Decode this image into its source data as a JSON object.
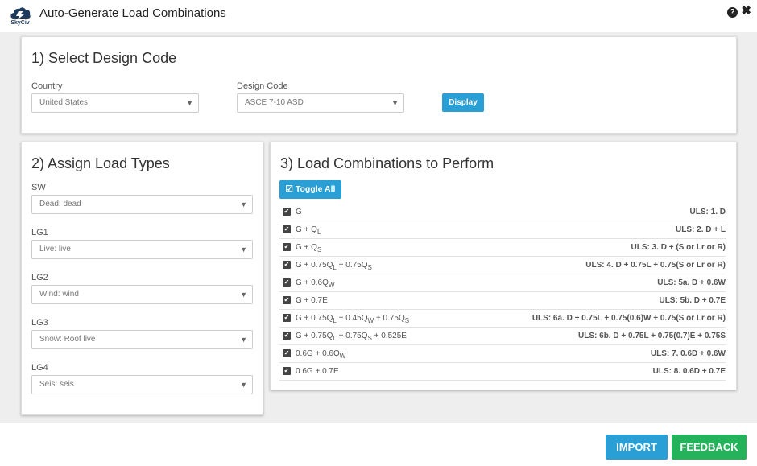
{
  "app": {
    "logo_text": "SkyCiv",
    "title": "Auto-Generate Load Combinations",
    "help_glyph": "?",
    "close_glyph": "✖"
  },
  "design_code_panel": {
    "heading": "1) Select Design Code",
    "country_label": "Country",
    "country_value": "United States",
    "design_code_label": "Design Code",
    "design_code_value": "ASCE 7-10 ASD",
    "display_button": "Display"
  },
  "load_types_panel": {
    "heading": "2) Assign Load Types",
    "items": [
      {
        "label": "SW",
        "value": "Dead: dead"
      },
      {
        "label": "LG1",
        "value": "Live: live"
      },
      {
        "label": "LG2",
        "value": "Wind: wind"
      },
      {
        "label": "LG3",
        "value": "Snow: Roof live"
      },
      {
        "label": "LG4",
        "value": "Seis: seis"
      }
    ]
  },
  "combinations_panel": {
    "heading": "3) Load Combinations to Perform",
    "toggle_all_label": "Toggle All",
    "rows": [
      {
        "checked": true,
        "formula": [
          {
            "t": "G"
          }
        ],
        "uls": "ULS: 1. D"
      },
      {
        "checked": true,
        "formula": [
          {
            "t": "G + Q"
          },
          {
            "s": "L"
          }
        ],
        "uls": "ULS: 2. D + L"
      },
      {
        "checked": true,
        "formula": [
          {
            "t": "G + Q"
          },
          {
            "s": "S"
          }
        ],
        "uls": "ULS: 3. D + (S or Lr or R)"
      },
      {
        "checked": true,
        "formula": [
          {
            "t": "G + 0.75Q"
          },
          {
            "s": "L"
          },
          {
            "t": " + 0.75Q"
          },
          {
            "s": "S"
          }
        ],
        "uls": "ULS: 4. D + 0.75L + 0.75(S or Lr or R)"
      },
      {
        "checked": true,
        "formula": [
          {
            "t": "G + 0.6Q"
          },
          {
            "s": "W"
          }
        ],
        "uls": "ULS: 5a. D + 0.6W"
      },
      {
        "checked": true,
        "formula": [
          {
            "t": "G + 0.7E"
          }
        ],
        "uls": "ULS: 5b. D + 0.7E"
      },
      {
        "checked": true,
        "formula": [
          {
            "t": "G + 0.75Q"
          },
          {
            "s": "L"
          },
          {
            "t": " + 0.45Q"
          },
          {
            "s": "W"
          },
          {
            "t": " + 0.75Q"
          },
          {
            "s": "S"
          }
        ],
        "uls": "ULS: 6a. D + 0.75L + 0.75(0.6)W + 0.75(S or Lr or R)"
      },
      {
        "checked": true,
        "formula": [
          {
            "t": "G + 0.75Q"
          },
          {
            "s": "L"
          },
          {
            "t": " + 0.75Q"
          },
          {
            "s": "S"
          },
          {
            "t": " + 0.525E"
          }
        ],
        "uls": "ULS: 6b. D + 0.75L + 0.75(0.7)E + 0.75S"
      },
      {
        "checked": true,
        "formula": [
          {
            "t": "0.6G + 0.6Q"
          },
          {
            "s": "W"
          }
        ],
        "uls": "ULS: 7. 0.6D + 0.6W"
      },
      {
        "checked": true,
        "formula": [
          {
            "t": "0.6G + 0.7E"
          }
        ],
        "uls": "ULS: 8. 0.6D + 0.7E"
      }
    ]
  },
  "footer": {
    "import_label": "IMPORT",
    "feedback_label": "FEEDBACK"
  },
  "colors": {
    "accent_blue": "#2a9fd6",
    "accent_green": "#24b35a",
    "background": "#eeeeee"
  }
}
